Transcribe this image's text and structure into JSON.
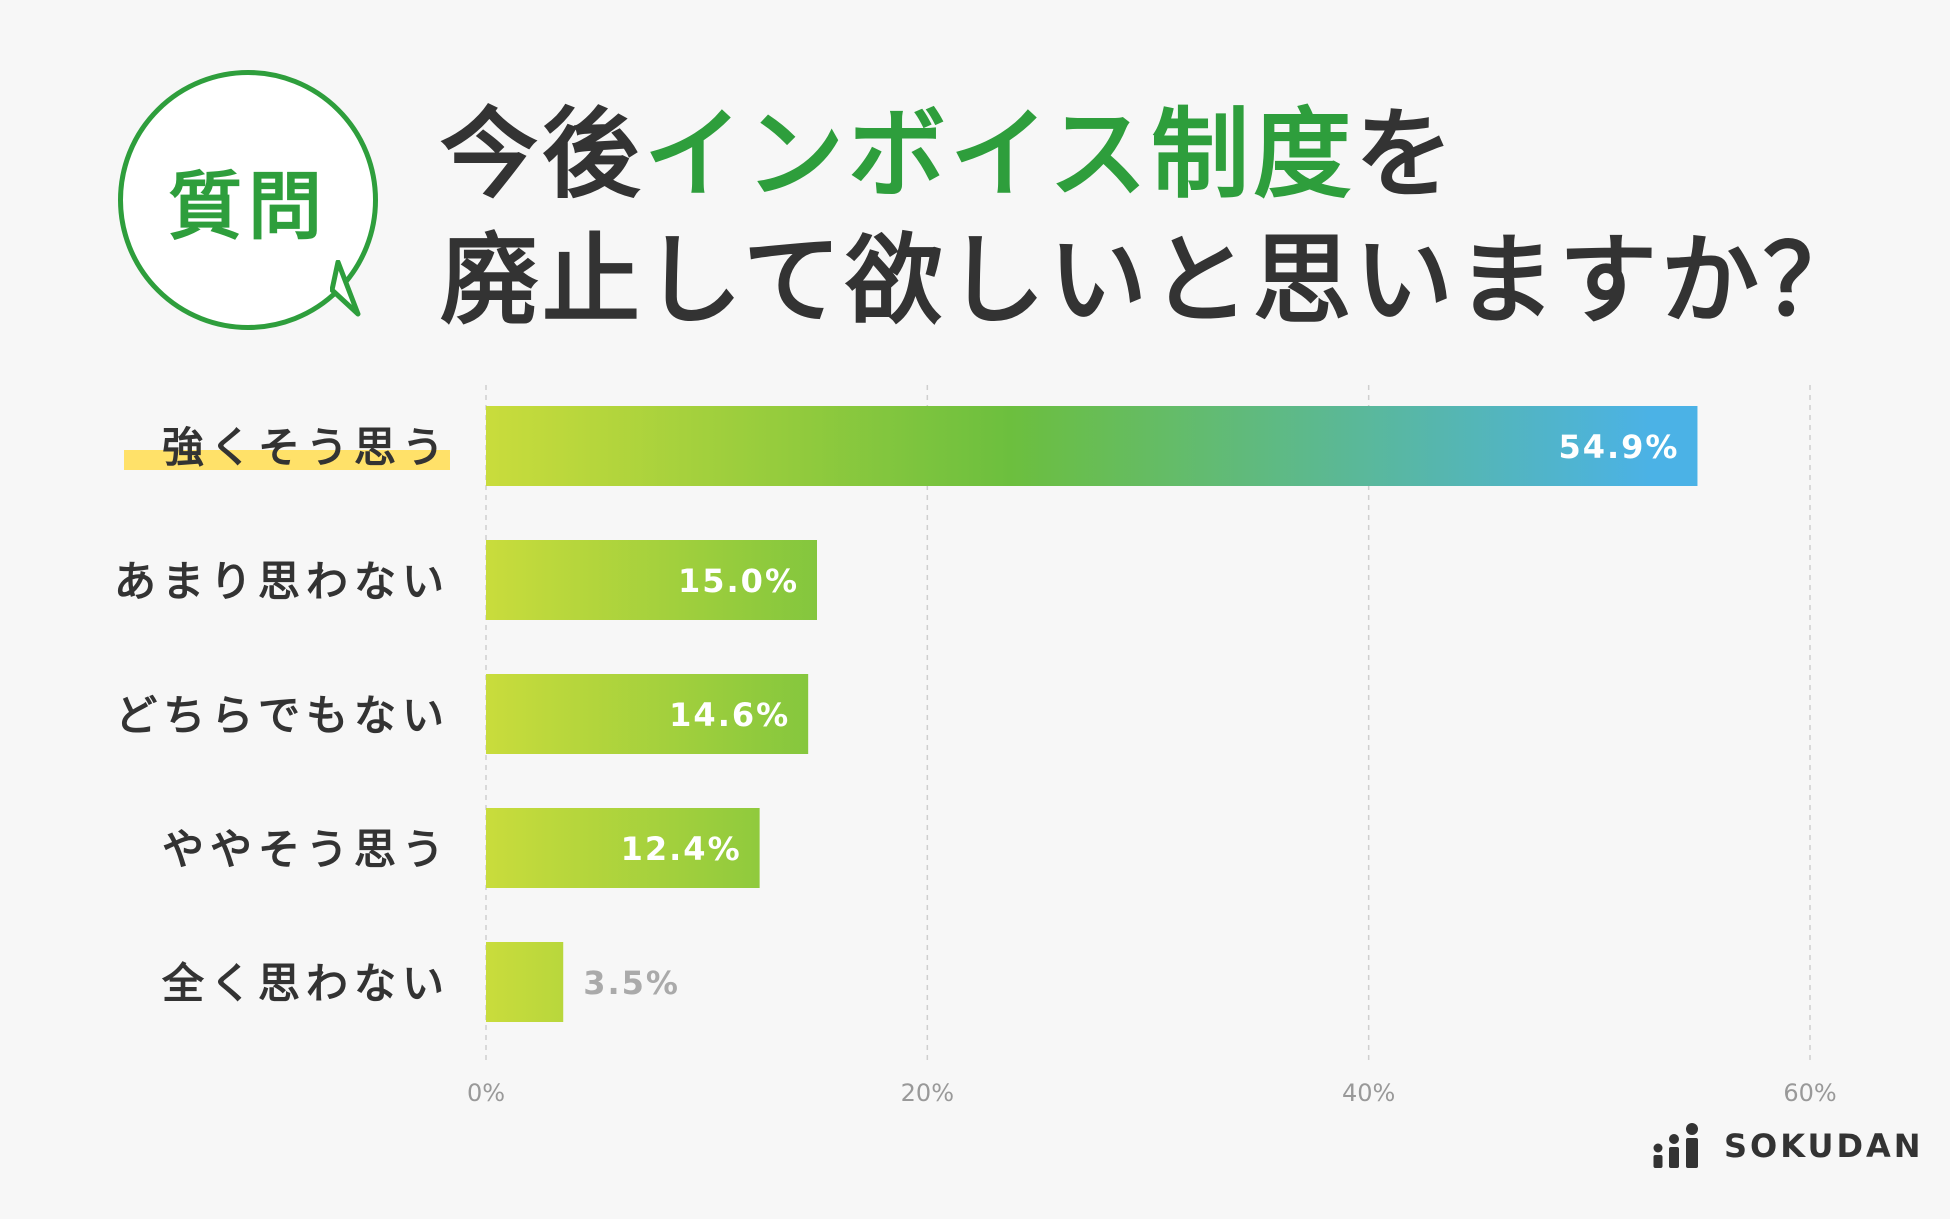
{
  "badge": {
    "label": "質問"
  },
  "title": {
    "line1_prefix": "今後",
    "line1_highlight": "インボイス制度",
    "line1_suffix": "を",
    "line2": "廃止して欲しいと思いますか？"
  },
  "colors": {
    "accent_green": "#2e9e3c",
    "bar_start": "#c9dc3c",
    "bar_mid": "#6cbf3e",
    "bar_end": "#4bb2e6",
    "highlight_yellow": "#ffe169"
  },
  "chart_data": {
    "type": "bar",
    "orientation": "horizontal",
    "categories": [
      "強くそう思う",
      "あまり思わない",
      "どちらでもない",
      "ややそう思う",
      "全く思わない"
    ],
    "values": [
      54.9,
      15.0,
      14.6,
      12.4,
      3.5
    ],
    "value_labels": [
      "54.9%",
      "15.0%",
      "14.6%",
      "12.4%",
      "3.5%"
    ],
    "xlim": [
      0,
      60
    ],
    "ticks": [
      0,
      20,
      40,
      60
    ],
    "tick_labels": [
      "0%",
      "20%",
      "40%",
      "60%"
    ],
    "grid": true,
    "highlighted_category": "強くそう思う"
  },
  "brand": {
    "name": "SOKUDAN",
    "icon": "sokudan-logo-icon"
  }
}
